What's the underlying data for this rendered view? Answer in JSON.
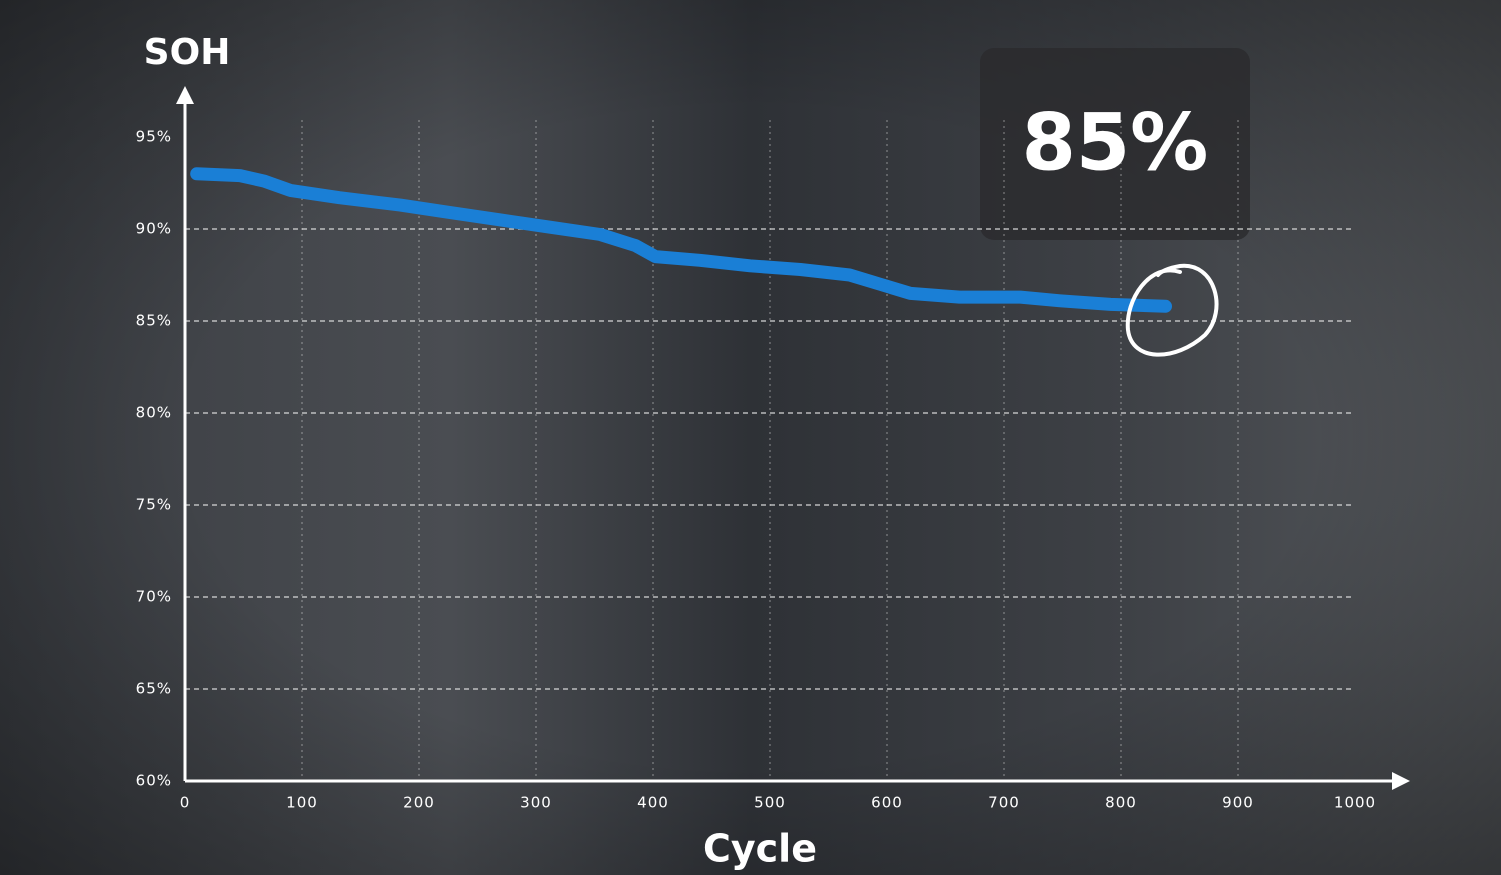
{
  "chart_data": {
    "type": "line",
    "y_label": "SOH",
    "x_label": "Cycle",
    "annotation": "85%",
    "x": [
      10,
      47,
      68,
      90,
      132,
      184,
      226,
      269,
      312,
      355,
      385,
      402,
      440,
      483,
      526,
      568,
      594,
      620,
      662,
      714,
      748,
      791,
      838
    ],
    "series": [
      {
        "color": "#1a7fd6",
        "values": [
          93.0,
          92.9,
          92.6,
          92.1,
          91.7,
          91.3,
          90.9,
          90.5,
          90.1,
          89.7,
          89.1,
          88.5,
          88.3,
          88.0,
          87.8,
          87.5,
          87.0,
          86.5,
          86.3,
          86.3,
          86.1,
          85.9,
          85.8
        ]
      }
    ],
    "xlim": [
      0,
      1000
    ],
    "xticks": [
      0,
      100,
      200,
      300,
      400,
      500,
      600,
      700,
      800,
      900,
      1000
    ],
    "ylim": [
      60,
      95
    ],
    "yticks": [
      {
        "value": 60,
        "label": "60%"
      },
      {
        "value": 65,
        "label": "65%"
      },
      {
        "value": 70,
        "label": "70%"
      },
      {
        "value": 75,
        "label": "75%"
      },
      {
        "value": 80,
        "label": "80%"
      },
      {
        "value": 85,
        "label": "85%"
      },
      {
        "value": 90,
        "label": "90%"
      },
      {
        "value": 95,
        "label": "95%"
      }
    ],
    "grid": true
  }
}
